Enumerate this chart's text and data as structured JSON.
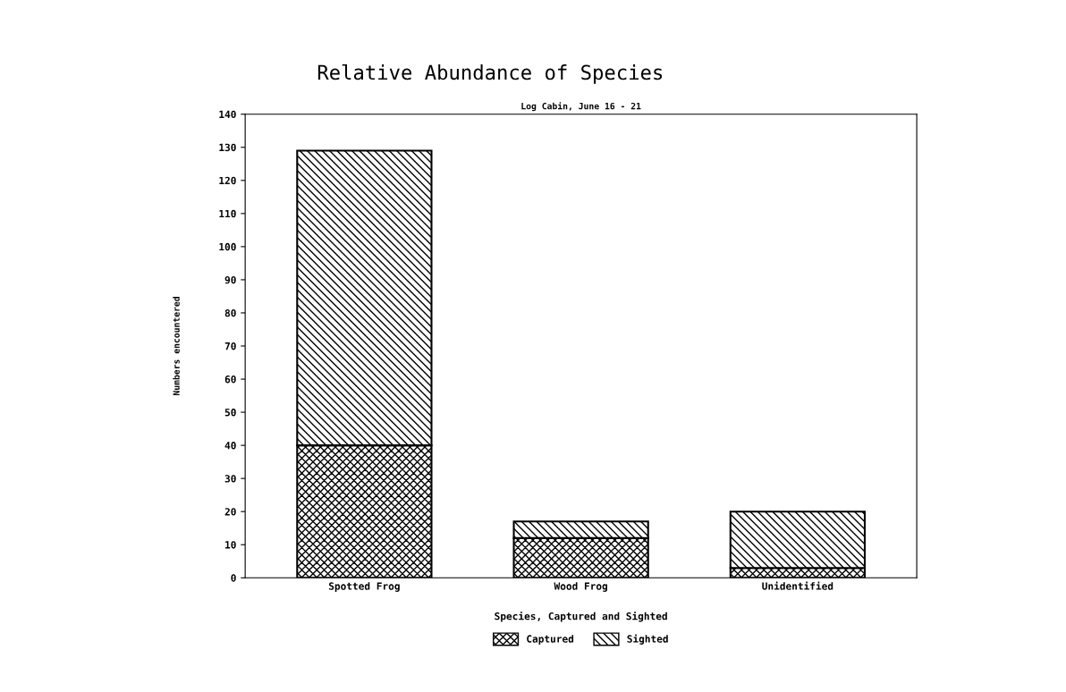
{
  "chart_data": {
    "type": "bar",
    "title": "Relative Abundance of Species",
    "subtitle": "Log Cabin, June 16 - 21",
    "xlabel": "Species, Captured and Sighted",
    "ylabel": "Numbers encountered",
    "categories": [
      "Spotted Frog",
      "Wood Frog",
      "Unidentified"
    ],
    "stacked": true,
    "series": [
      {
        "name": "Captured",
        "color": "#000000",
        "values": [
          40,
          12,
          3
        ]
      },
      {
        "name": "Sighted",
        "color": "#000000",
        "values": [
          89,
          5,
          17
        ]
      }
    ],
    "ylim": [
      0,
      140
    ],
    "yticks": [
      0,
      10,
      20,
      30,
      40,
      50,
      60,
      70,
      80,
      90,
      100,
      110,
      120,
      130,
      140
    ],
    "grid": false,
    "legend": "bottom"
  }
}
